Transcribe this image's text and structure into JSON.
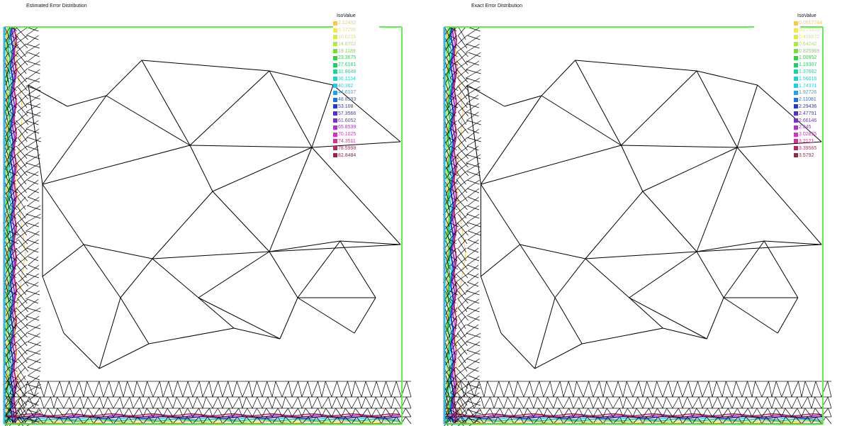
{
  "panels": [
    {
      "title": "Estimated Error Distribution",
      "legend_title": "IsoValue",
      "iso_values": [
        "2.12432",
        "6.37296",
        "10.6216",
        "14.8702",
        "19.1189",
        "23.3675",
        "27.6161",
        "31.8648",
        "36.1134",
        "40.362",
        "44.6107",
        "48.8593",
        "53.108",
        "57.3566",
        "61.6052",
        "65.8539",
        "70.1025",
        "74.3511",
        "78.5998",
        "82.8484"
      ],
      "colors": [
        "#f7c843",
        "#f4e844",
        "#d3f03c",
        "#a8ec3c",
        "#6ee13a",
        "#2fd43c",
        "#1ccf66",
        "#1bd2a2",
        "#1cd4cf",
        "#1ccfee",
        "#1ea4ef",
        "#1f6fe6",
        "#1f3ad8",
        "#4a31d6",
        "#7a2ed6",
        "#b02fd8",
        "#d72fc6",
        "#d82f94",
        "#b52a64",
        "#8e2a4a"
      ]
    },
    {
      "title": "Exact Error Distribution",
      "legend_title": "IsoValue",
      "iso_values": [
        "0.0917744",
        "0.275323",
        "0.458872",
        "0.64242",
        "0.825969",
        "1.00952",
        "1.19307",
        "1.37662",
        "1.56016",
        "1.74371",
        "1.92726",
        "2.11081",
        "2.29436",
        "2.47791",
        "2.66146",
        "2.845",
        "3.02855",
        "3.2121",
        "3.39565",
        "3.5792"
      ],
      "colors": [
        "#f7c843",
        "#f4e844",
        "#d3f03c",
        "#a8ec3c",
        "#6ee13a",
        "#2fd43c",
        "#1ccf66",
        "#1bd2a2",
        "#1cd4cf",
        "#1ccfee",
        "#1ea4ef",
        "#1f6fe6",
        "#1f3ad8",
        "#4a31d6",
        "#7a2ed6",
        "#b02fd8",
        "#d72fc6",
        "#d82f94",
        "#b52a64",
        "#8e2a4a"
      ]
    }
  ]
}
